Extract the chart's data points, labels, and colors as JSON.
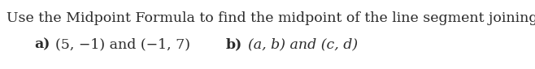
{
  "line1": "Use the Midpoint Formula to find the midpoint of the line segment joining:",
  "line2_a_bold": "a)",
  "line2_a_normal": "  (5, −1) and (−1, 7)",
  "line2_b_bold": "b)",
  "line2_b_italic": "  (a, b) and (c, d)",
  "background_color": "#ffffff",
  "text_color": "#2b2b2b",
  "font_size": 12.5,
  "fig_width": 6.58,
  "fig_height": 0.85,
  "dpi": 100
}
